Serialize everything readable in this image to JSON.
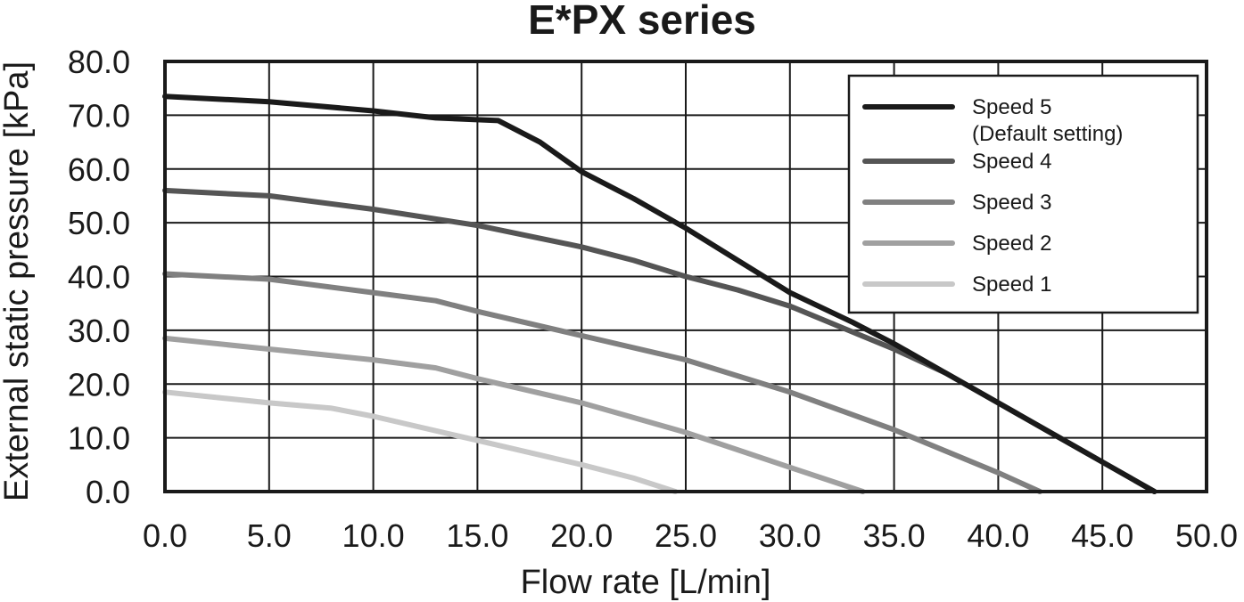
{
  "chart_data": {
    "type": "line",
    "title": "E*PX series",
    "xlabel": "Flow rate [L/min]",
    "ylabel": "External static pressure [kPa]",
    "xlim": [
      0,
      50
    ],
    "ylim": [
      0,
      80
    ],
    "xticks": [
      "0.0",
      "5.0",
      "10.0",
      "15.0",
      "20.0",
      "25.0",
      "30.0",
      "35.0",
      "40.0",
      "45.0",
      "50.0"
    ],
    "yticks": [
      "0.0",
      "10.0",
      "20.0",
      "30.0",
      "40.0",
      "50.0",
      "60.0",
      "70.0",
      "80.0"
    ],
    "grid": true,
    "legend_position": "top-right",
    "series": [
      {
        "name": "Speed 5",
        "name_note": "(Default setting)",
        "color": "#1a1a1a",
        "x": [
          0,
          5,
          10,
          13,
          16,
          18,
          20,
          22.5,
          25,
          27.5,
          30,
          33,
          35,
          37.5,
          40,
          42.5,
          45,
          47.5
        ],
        "y": [
          73.5,
          72.5,
          70.8,
          69.5,
          69.0,
          65,
          59.5,
          54.5,
          49,
          43,
          37,
          31.5,
          27.5,
          22,
          16.5,
          11,
          5.5,
          0
        ]
      },
      {
        "name": "Speed 4",
        "color": "#555555",
        "x": [
          0,
          5,
          10,
          15,
          17.5,
          20,
          22.5,
          25,
          27.5,
          30,
          32.5,
          35,
          37.5,
          40,
          42.5,
          45,
          47.5
        ],
        "y": [
          56,
          55,
          52.5,
          49.5,
          47.5,
          45.5,
          43,
          40,
          37.5,
          34.5,
          30.5,
          26.5,
          22,
          16.5,
          11,
          5.5,
          0
        ]
      },
      {
        "name": "Speed 3",
        "color": "#808080",
        "x": [
          0,
          5,
          10,
          13,
          15,
          20,
          25,
          30,
          35,
          40,
          42
        ],
        "y": [
          40.5,
          39.5,
          37,
          35.5,
          33.5,
          29,
          24.5,
          18.5,
          11.5,
          3.5,
          0
        ]
      },
      {
        "name": "Speed 2",
        "color": "#a0a0a0",
        "x": [
          0,
          5,
          10,
          13,
          15,
          20,
          25,
          30,
          33.5
        ],
        "y": [
          28.5,
          26.5,
          24.5,
          23,
          21,
          16.5,
          11,
          4.5,
          0
        ]
      },
      {
        "name": "Speed 1",
        "color": "#c8c8c8",
        "x": [
          0,
          5,
          8,
          10,
          15,
          20,
          22.5,
          24.5
        ],
        "y": [
          18.5,
          16.5,
          15.5,
          14,
          9.5,
          5,
          2.5,
          0
        ]
      }
    ]
  }
}
